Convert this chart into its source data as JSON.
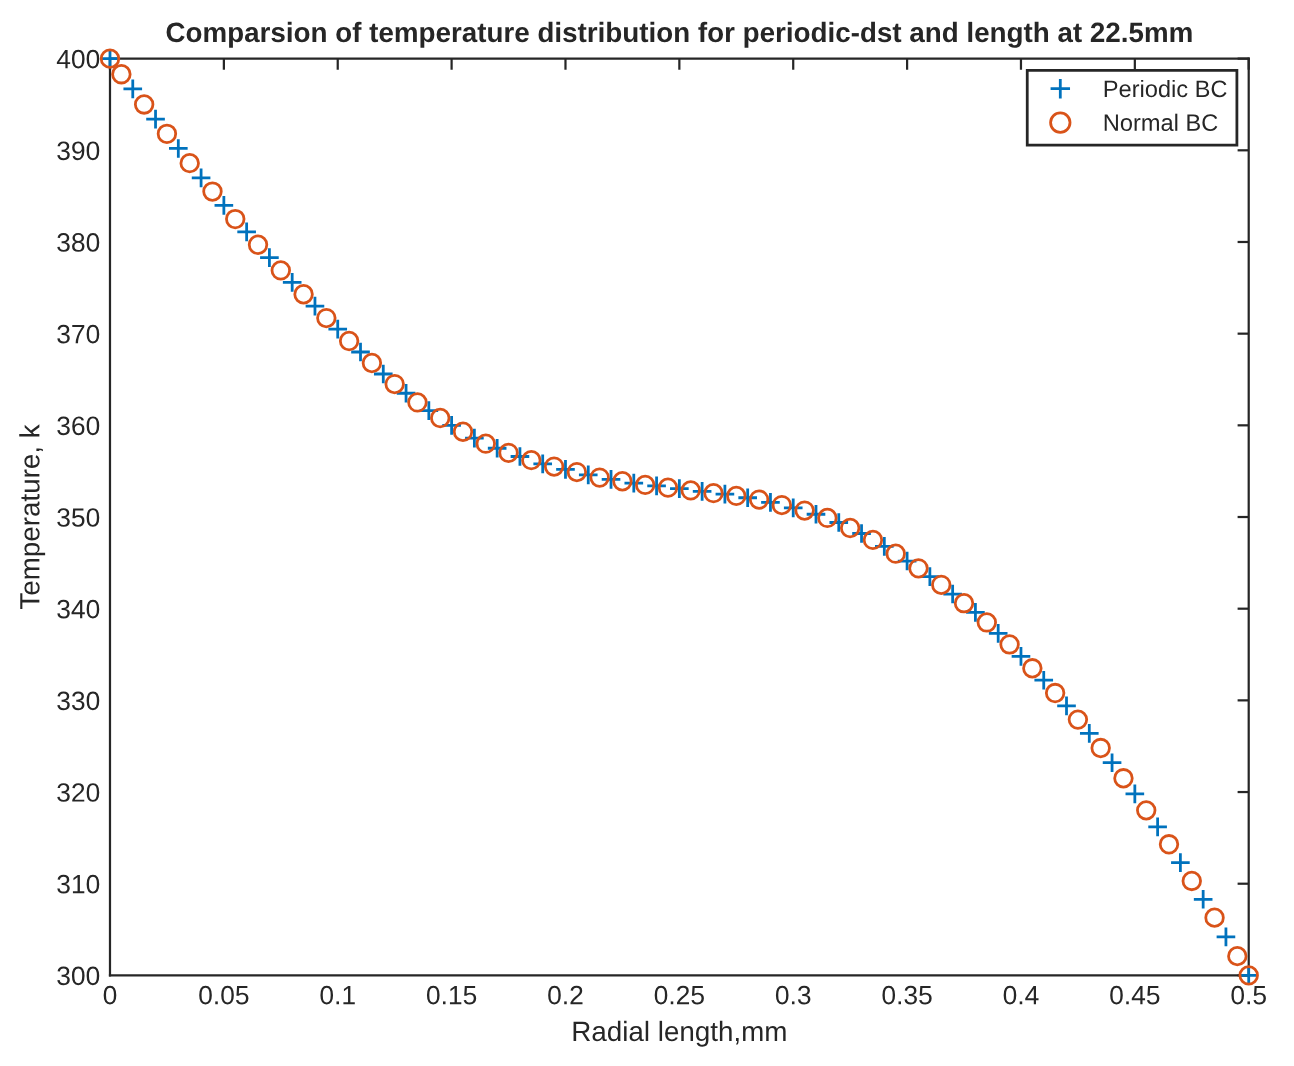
{
  "chart_data": {
    "type": "scatter",
    "title": "Comparsion of temperature distribution for periodic-dst and length at 22.5mm",
    "xlabel": "Radial length,mm",
    "ylabel": "Temperature, k",
    "xlim": [
      0,
      0.5
    ],
    "ylim": [
      300,
      400
    ],
    "xticks": [
      0,
      0.05,
      0.1,
      0.15,
      0.2,
      0.25,
      0.3,
      0.35,
      0.4,
      0.45,
      0.5
    ],
    "yticks": [
      300,
      310,
      320,
      330,
      340,
      350,
      360,
      370,
      380,
      390,
      400
    ],
    "grid": false,
    "legend": "top right",
    "series": [
      {
        "name": "Periodic BC",
        "color": "#0072bd",
        "marker": "cross",
        "x": [
          0,
          0.01,
          0.02,
          0.03,
          0.04,
          0.05,
          0.06,
          0.07,
          0.08,
          0.09,
          0.1,
          0.11,
          0.12,
          0.13,
          0.14,
          0.15,
          0.16,
          0.17,
          0.18,
          0.19,
          0.2,
          0.21,
          0.22,
          0.23,
          0.24,
          0.25,
          0.26,
          0.27,
          0.28,
          0.29,
          0.3,
          0.31,
          0.32,
          0.33,
          0.34,
          0.35,
          0.36,
          0.37,
          0.38,
          0.39,
          0.4,
          0.41,
          0.42,
          0.43,
          0.44,
          0.45,
          0.46,
          0.47,
          0.48,
          0.49,
          0.5
        ],
        "values": [
          400,
          396.7,
          393.4,
          390.2,
          387,
          384,
          381.1,
          378.3,
          375.6,
          373,
          370.5,
          368,
          365.6,
          363.5,
          361.6,
          360,
          358.6,
          357.5,
          356.6,
          355.8,
          355.2,
          354.6,
          354.1,
          353.7,
          353.4,
          353.1,
          352.8,
          352.5,
          352.1,
          351.6,
          351,
          350.3,
          349.4,
          348.2,
          346.8,
          345.2,
          343.5,
          341.6,
          339.6,
          337.3,
          334.8,
          332.2,
          329.4,
          326.4,
          323.2,
          319.8,
          316.2,
          312.3,
          308.3,
          304.2,
          300
        ]
      },
      {
        "name": "Normal BC",
        "color": "#d95319",
        "marker": "circle",
        "x": [
          0,
          0.005,
          0.015,
          0.025,
          0.035,
          0.045,
          0.055,
          0.065,
          0.075,
          0.085,
          0.095,
          0.105,
          0.115,
          0.125,
          0.135,
          0.145,
          0.155,
          0.165,
          0.175,
          0.185,
          0.195,
          0.205,
          0.215,
          0.225,
          0.235,
          0.245,
          0.255,
          0.265,
          0.275,
          0.285,
          0.295,
          0.305,
          0.315,
          0.325,
          0.335,
          0.345,
          0.355,
          0.365,
          0.375,
          0.385,
          0.395,
          0.405,
          0.415,
          0.425,
          0.435,
          0.445,
          0.455,
          0.465,
          0.475,
          0.485,
          0.495,
          0.5
        ],
        "values": [
          400,
          398.3,
          395,
          391.8,
          388.6,
          385.5,
          382.5,
          379.7,
          376.9,
          374.3,
          371.7,
          369.2,
          366.8,
          364.5,
          362.5,
          360.8,
          359.3,
          358,
          357,
          356.2,
          355.5,
          354.9,
          354.3,
          353.9,
          353.5,
          353.2,
          352.9,
          352.6,
          352.3,
          351.9,
          351.3,
          350.7,
          349.9,
          348.8,
          347.5,
          346,
          344.4,
          342.6,
          340.6,
          338.5,
          336.1,
          333.5,
          330.8,
          327.9,
          324.8,
          321.5,
          318,
          314.3,
          310.3,
          306.3,
          302.1,
          300
        ]
      }
    ]
  }
}
